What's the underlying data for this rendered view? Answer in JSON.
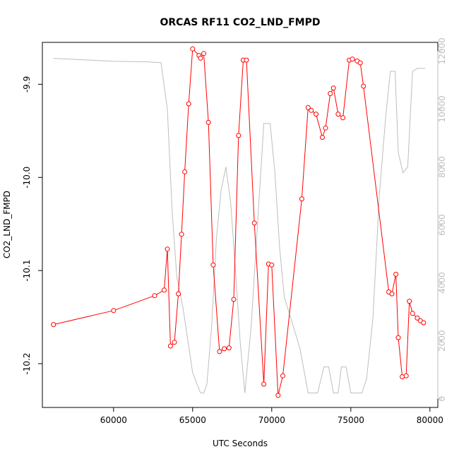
{
  "chart_data": {
    "type": "line",
    "title": "ORCAS RF11 CO2_LND_FMPD",
    "xlabel": "UTC Seconds",
    "ylabel": "CO2_LND_FMPD",
    "xlim": [
      55500,
      80500
    ],
    "ylim": [
      -10.247,
      -9.855
    ],
    "y2lim": [
      -300,
      12300
    ],
    "x_ticks": [
      60000,
      65000,
      70000,
      75000,
      80000
    ],
    "y_ticks": [
      -10.2,
      -10.1,
      -10.0,
      -9.9
    ],
    "y2_ticks": [
      0,
      2000,
      4000,
      6000,
      8000,
      10000,
      12000
    ],
    "y_tick_labels": [
      "-10.2",
      "-10.1",
      "-10.0",
      "-9.9"
    ],
    "grid": false,
    "series": [
      {
        "color": "#ff0000",
        "axis": "left",
        "style": "line+circle",
        "x": [
          56200,
          60000,
          62600,
          63200,
          63400,
          63600,
          63850,
          64100,
          64300,
          64500,
          64750,
          65000,
          65400,
          65500,
          65700,
          66000,
          66300,
          66700,
          67000,
          67300,
          67600,
          67900,
          68200,
          68400,
          68900,
          69500,
          69800,
          70000,
          70400,
          70700,
          71900,
          72300,
          72500,
          72800,
          73200,
          73400,
          73700,
          73900,
          74200,
          74500,
          74900,
          75100,
          75400,
          75600,
          75800,
          77400,
          77600,
          77850,
          78000,
          78250,
          78500,
          78700,
          78900,
          79200,
          79400,
          79600
        ],
        "values": [
          -10.158,
          -10.143,
          -10.127,
          -10.121,
          -10.077,
          -10.181,
          -10.177,
          -10.125,
          -10.061,
          -9.994,
          -9.921,
          -9.862,
          -9.869,
          -9.872,
          -9.867,
          -9.941,
          -10.094,
          -10.187,
          -10.184,
          -10.183,
          -10.131,
          -9.955,
          -9.874,
          -9.874,
          -10.049,
          -10.222,
          -10.093,
          -10.094,
          -10.234,
          -10.213,
          -10.023,
          -9.925,
          -9.928,
          -9.932,
          -9.957,
          -9.947,
          -9.91,
          -9.904,
          -9.932,
          -9.936,
          -9.874,
          -9.873,
          -9.875,
          -9.877,
          -9.902,
          -10.123,
          -10.125,
          -10.104,
          -10.172,
          -10.214,
          -10.213,
          -10.133,
          -10.146,
          -10.151,
          -10.154,
          -10.156
        ]
      },
      {
        "color": "#bebebe",
        "axis": "right",
        "style": "line",
        "x": [
          56200,
          58000,
          60000,
          62000,
          63000,
          63400,
          63700,
          64000,
          64400,
          65000,
          65500,
          65700,
          65900,
          66200,
          66500,
          66800,
          67100,
          67400,
          67700,
          68000,
          68300,
          68700,
          69100,
          69500,
          69900,
          70200,
          70500,
          70800,
          71200,
          71800,
          72300,
          72600,
          72900,
          73300,
          73600,
          73900,
          74200,
          74400,
          74700,
          75000,
          75400,
          75700,
          76000,
          76400,
          76800,
          77200,
          77500,
          77800,
          78000,
          78300,
          78600,
          78900,
          79200,
          79700
        ],
        "values": [
          11750,
          11700,
          11650,
          11630,
          11600,
          10000,
          6500,
          4200,
          3100,
          900,
          200,
          200,
          500,
          2500,
          5500,
          7200,
          8000,
          6800,
          4500,
          2000,
          200,
          2500,
          6000,
          9500,
          9500,
          7800,
          5200,
          3500,
          2800,
          1700,
          200,
          200,
          200,
          1100,
          1100,
          200,
          200,
          1100,
          1100,
          200,
          200,
          200,
          700,
          2800,
          7000,
          9700,
          11300,
          11300,
          8500,
          7800,
          8000,
          11300,
          11400,
          11400
        ]
      }
    ]
  }
}
